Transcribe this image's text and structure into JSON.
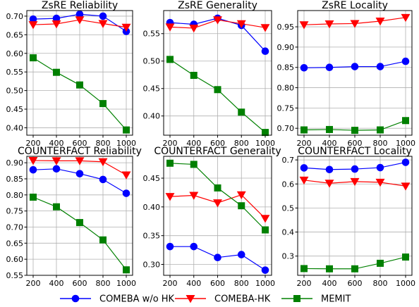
{
  "chart_data": [
    {
      "type": "line",
      "title": "ZsRE Reliability",
      "x": [
        200,
        400,
        600,
        800,
        1000
      ],
      "xticks": [
        "200",
        "400",
        "600",
        "800",
        "1000"
      ],
      "ylim": [
        0.38,
        0.715
      ],
      "yticks": [
        "0.40",
        "0.45",
        "0.50",
        "0.55",
        "0.60",
        "0.65",
        "0.70"
      ],
      "grid": true,
      "series": [
        {
          "name": "COMEBA w/o HK",
          "values": [
            0.692,
            0.694,
            0.705,
            0.7,
            0.659
          ]
        },
        {
          "name": "COMEBA-HK",
          "values": [
            0.677,
            0.679,
            0.69,
            0.68,
            0.67
          ]
        },
        {
          "name": "MEMIT",
          "values": [
            0.588,
            0.549,
            0.515,
            0.465,
            0.394
          ]
        }
      ]
    },
    {
      "type": "line",
      "title": "ZsRE Generality",
      "x": [
        200,
        400,
        600,
        800,
        1000
      ],
      "xticks": [
        "200",
        "400",
        "600",
        "800",
        "1000"
      ],
      "ylim": [
        0.365,
        0.592
      ],
      "yticks": [
        "0.40",
        "0.45",
        "0.50",
        "0.55"
      ],
      "grid": true,
      "series": [
        {
          "name": "COMEBA w/o HK",
          "values": [
            0.57,
            0.567,
            0.578,
            0.565,
            0.518
          ]
        },
        {
          "name": "COMEBA-HK",
          "values": [
            0.562,
            0.56,
            0.575,
            0.568,
            0.561
          ]
        },
        {
          "name": "MEMIT",
          "values": [
            0.503,
            0.474,
            0.448,
            0.407,
            0.37
          ]
        }
      ]
    },
    {
      "type": "line",
      "title": "ZsRE Locality",
      "x": [
        200,
        400,
        600,
        800,
        1000
      ],
      "xticks": [
        "200",
        "400",
        "600",
        "800",
        "1000"
      ],
      "ylim": [
        0.683,
        0.99
      ],
      "yticks": [
        "0.70",
        "0.75",
        "0.80",
        "0.85",
        "0.90",
        "0.95"
      ],
      "grid": true,
      "series": [
        {
          "name": "COMEBA w/o HK",
          "values": [
            0.849,
            0.85,
            0.852,
            0.852,
            0.865
          ]
        },
        {
          "name": "COMEBA-HK",
          "values": [
            0.955,
            0.957,
            0.958,
            0.964,
            0.973
          ]
        },
        {
          "name": "MEMIT",
          "values": [
            0.696,
            0.697,
            0.695,
            0.696,
            0.719
          ]
        }
      ]
    },
    {
      "type": "line",
      "title": "COUNTERFACT Reliability",
      "x": [
        200,
        400,
        600,
        800,
        1000
      ],
      "xticks": [
        "200",
        "400",
        "600",
        "800",
        "1000"
      ],
      "ylim": [
        0.55,
        0.92
      ],
      "yticks": [
        "0.55",
        "0.60",
        "0.65",
        "0.70",
        "0.75",
        "0.80",
        "0.85",
        "0.90"
      ],
      "grid": true,
      "series": [
        {
          "name": "COMEBA w/o HK",
          "values": [
            0.878,
            0.881,
            0.866,
            0.848,
            0.805
          ]
        },
        {
          "name": "COMEBA-HK",
          "values": [
            0.907,
            0.906,
            0.906,
            0.903,
            0.862
          ]
        },
        {
          "name": "MEMIT",
          "values": [
            0.793,
            0.763,
            0.714,
            0.66,
            0.567
          ]
        }
      ]
    },
    {
      "type": "line",
      "title": "COUNTERFACT Generality",
      "x": [
        200,
        400,
        600,
        800,
        1000
      ],
      "xticks": [
        "200",
        "400",
        "600",
        "800",
        "1000"
      ],
      "ylim": [
        0.281,
        0.488
      ],
      "yticks": [
        "0.30",
        "0.35",
        "0.40",
        "0.45"
      ],
      "grid": true,
      "series": [
        {
          "name": "COMEBA w/o HK",
          "values": [
            0.331,
            0.331,
            0.312,
            0.317,
            0.29
          ]
        },
        {
          "name": "COMEBA-HK",
          "values": [
            0.418,
            0.42,
            0.407,
            0.421,
            0.38
          ]
        },
        {
          "name": "MEMIT",
          "values": [
            0.476,
            0.474,
            0.433,
            0.402,
            0.36
          ]
        }
      ]
    },
    {
      "type": "line",
      "title": "COUNTERFACT Locality",
      "x": [
        200,
        400,
        600,
        800,
        1000
      ],
      "xticks": [
        "200",
        "400",
        "600",
        "800",
        "1000"
      ],
      "ylim": [
        0.22,
        0.715
      ],
      "yticks": [
        "0.3",
        "0.4",
        "0.5",
        "0.6",
        "0.7"
      ],
      "grid": true,
      "series": [
        {
          "name": "COMEBA w/o HK",
          "values": [
            0.667,
            0.66,
            0.662,
            0.668,
            0.69
          ]
        },
        {
          "name": "COMEBA-HK",
          "values": [
            0.616,
            0.603,
            0.61,
            0.607,
            0.591
          ]
        },
        {
          "name": "MEMIT",
          "values": [
            0.248,
            0.247,
            0.247,
            0.27,
            0.296
          ]
        }
      ]
    }
  ],
  "legend": {
    "placement": "bottom",
    "items": [
      {
        "label": "COMEBA w/o HK",
        "color": "#0000ff",
        "marker": "circle"
      },
      {
        "label": "COMEBA-HK",
        "color": "#ff0000",
        "marker": "triangle-down"
      },
      {
        "label": "MEMIT",
        "color": "#008000",
        "marker": "square"
      }
    ]
  },
  "colors": {
    "COMEBA w/o HK": "#0000ff",
    "COMEBA-HK": "#ff0000",
    "MEMIT": "#008000"
  }
}
